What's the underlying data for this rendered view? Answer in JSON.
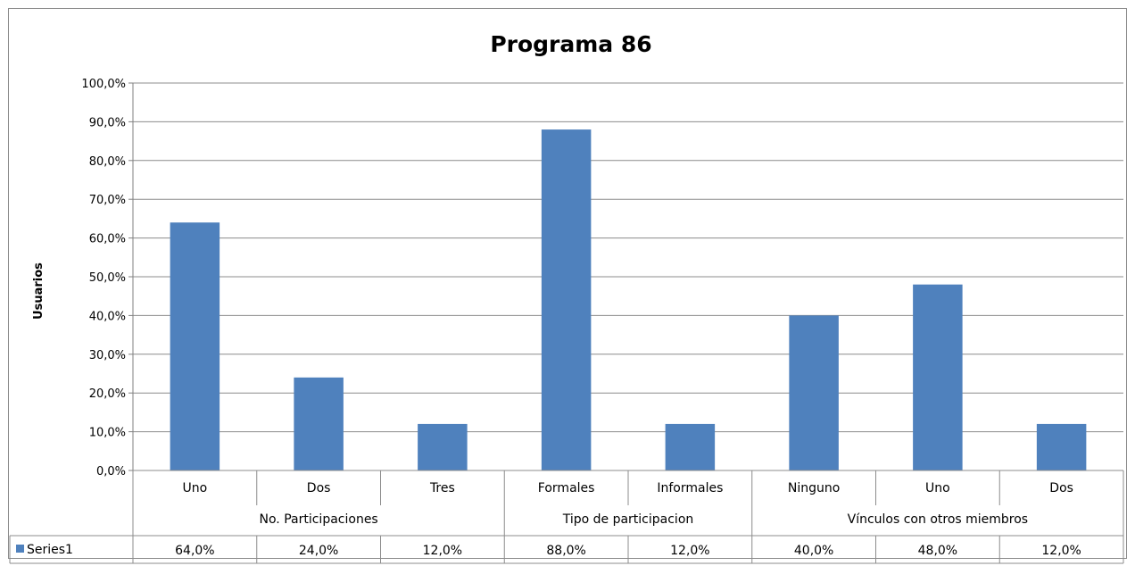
{
  "chart_data": {
    "type": "bar",
    "title": "Programa 86",
    "ylabel": "Usuarios",
    "xlabel": "",
    "ylim": [
      0,
      100
    ],
    "ytick_step": 10,
    "ytick_labels": [
      "0,0%",
      "10,0%",
      "20,0%",
      "30,0%",
      "40,0%",
      "50,0%",
      "60,0%",
      "70,0%",
      "80,0%",
      "90,0%",
      "100,0%"
    ],
    "grid": true,
    "categories": [
      "Uno",
      "Dos",
      "Tres",
      "Formales",
      "Informales",
      "Ninguno",
      "Uno",
      "Dos"
    ],
    "groups": [
      {
        "label": "No. Participaciones",
        "count": 3
      },
      {
        "label": "Tipo de participacion",
        "count": 2
      },
      {
        "label": "Vínculos con otros miembros",
        "count": 3
      }
    ],
    "series": [
      {
        "name": "Series1",
        "color": "#4f81bd",
        "values": [
          64.0,
          24.0,
          12.0,
          88.0,
          12.0,
          40.0,
          48.0,
          12.0
        ],
        "value_labels": [
          "64,0%",
          "24,0%",
          "12,0%",
          "88,0%",
          "12,0%",
          "40,0%",
          "48,0%",
          "12,0%"
        ]
      }
    ]
  }
}
